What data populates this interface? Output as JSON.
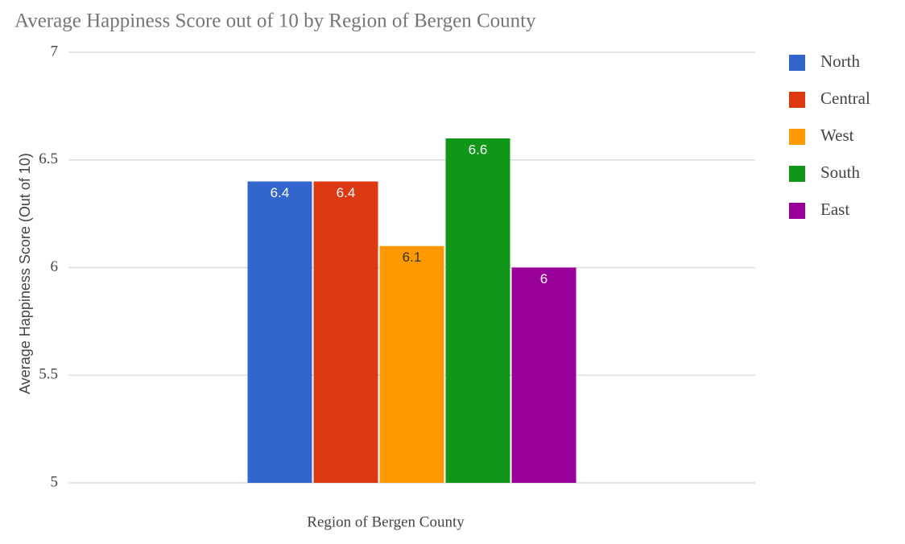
{
  "chart_data": {
    "type": "bar",
    "title": "Average Happiness Score out of 10 by Region of Bergen County",
    "x_label": "Region of Bergen County",
    "y_label": "Average Happiness Score (Out of 10)",
    "categories": [
      null
    ],
    "series": [
      {
        "name": "North",
        "color": "#3366cc",
        "values": [
          6.4
        ]
      },
      {
        "name": "Central",
        "color": "#dc3912",
        "values": [
          6.4
        ]
      },
      {
        "name": "West",
        "color": "#ff9900",
        "values": [
          6.1
        ]
      },
      {
        "name": "South",
        "color": "#109618",
        "values": [
          6.6
        ]
      },
      {
        "name": "East",
        "color": "#990099",
        "values": [
          6
        ]
      }
    ],
    "ylim": [
      5,
      7
    ],
    "yticks": [
      5,
      5.5,
      6,
      6.5,
      7
    ],
    "grid": true,
    "legend": "right"
  }
}
